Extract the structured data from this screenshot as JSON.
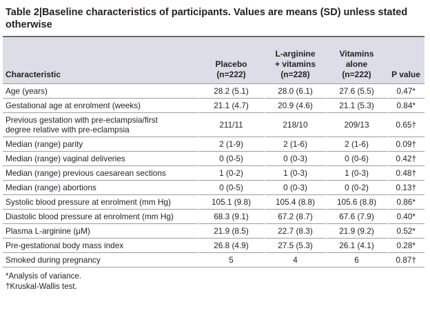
{
  "caption": {
    "number": "Table  2",
    "separator": "|",
    "text": "Baseline characteristics of participants. Values are means (SD) unless stated otherwise"
  },
  "header": {
    "characteristic": "Characteristic",
    "placebo": [
      "Placebo",
      "(n=222)"
    ],
    "larginine": [
      "L-arginine",
      "+ vitamins",
      "(n=228)"
    ],
    "vitamins": [
      "Vitamins",
      "alone",
      "(n=222)"
    ],
    "pvalue": "P value"
  },
  "rows": [
    {
      "label": "Age (years)",
      "placebo": "28.2 (5.1)",
      "larginine": "28.0 (6.1)",
      "vitamins": "27.6 (5.5)",
      "p": "0.47*"
    },
    {
      "label": "Gestational age at enrolment (weeks)",
      "placebo": "21.1 (4.7)",
      "larginine": "20.9 (4.6)",
      "vitamins": "21.1 (5.3)",
      "p": "0.84*"
    },
    {
      "label": [
        "Previous gestation with pre-eclampsia/first",
        "degree relative with pre-eclampsia"
      ],
      "placebo": "211/11",
      "larginine": "218/10",
      "vitamins": "209/13",
      "p": "0.65†"
    },
    {
      "label": "Median (range) parity",
      "placebo": "2 (1-9)",
      "larginine": "2 (1-6)",
      "vitamins": "2 (1-6)",
      "p": "0.09†"
    },
    {
      "label": "Median (range) vaginal deliveries",
      "placebo": "0 (0-5)",
      "larginine": "0 (0-3)",
      "vitamins": "0 (0-6)",
      "p": "0.42†"
    },
    {
      "label": "Median (range) previous caesarean sections",
      "placebo": "1 (0-2)",
      "larginine": "1 (0-3)",
      "vitamins": "1 (0-3)",
      "p": "0.48†"
    },
    {
      "label": "Median (range) abortions",
      "placebo": "0 (0-5)",
      "larginine": "0 (0-3)",
      "vitamins": "0 (0-2)",
      "p": "0.13†"
    },
    {
      "label": "Systolic blood pressure at enrolment (mm Hg)",
      "placebo": "105.1 (9.8)",
      "larginine": "105.4 (8.8)",
      "vitamins": "105.6 (8.8)",
      "p": "0.86*"
    },
    {
      "label": "Diastolic blood pressure at enrolment (mm Hg)",
      "placebo": "68.3 (9.1)",
      "larginine": "67.2 (8.7)",
      "vitamins": "67.6 (7.9)",
      "p": "0.40*"
    },
    {
      "label": "Plasma L-arginine (μM)",
      "placebo": "21.9 (8.5)",
      "larginine": "22.7 (8.3)",
      "vitamins": "21.9 (9.2)",
      "p": "0.52*"
    },
    {
      "label": "Pre-gestational body mass index",
      "placebo": "26.8 (4.9)",
      "larginine": "27.5 (5.3)",
      "vitamins": "26.1 (4.1)",
      "p": "0.28*"
    },
    {
      "label": "Smoked during pregnancy",
      "placebo": "5",
      "larginine": "4",
      "vitamins": "6",
      "p": "0.87†"
    }
  ],
  "footnotes": [
    "*Analysis of variance.",
    "†Kruskal-Wallis test."
  ],
  "colors": {
    "header_band": "#dcdde6",
    "rule": "#6b6b6b",
    "row_line": "#9a9aa3",
    "text": "#231f20"
  }
}
